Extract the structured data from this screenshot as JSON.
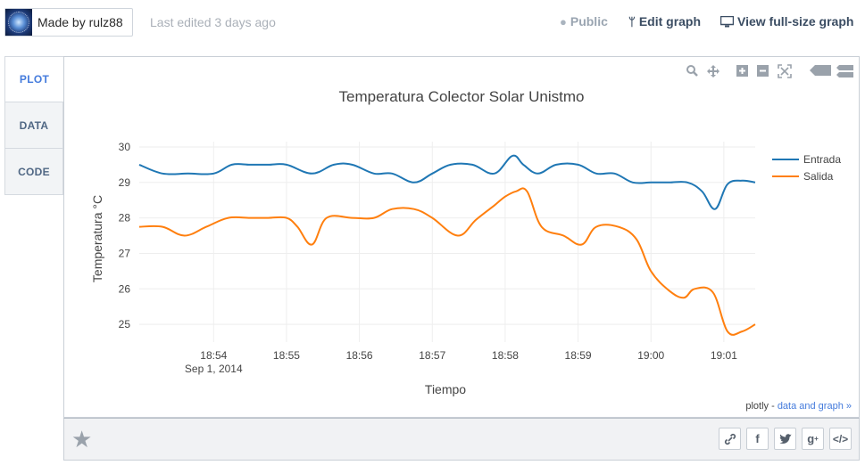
{
  "header": {
    "author_label": "Made by rulz88",
    "last_edited": "Last edited 3 days ago",
    "public_label": "Public",
    "edit_label": "Edit graph",
    "view_full_label": "View full-size graph"
  },
  "tabs": [
    {
      "label": "PLOT",
      "active": true
    },
    {
      "label": "DATA",
      "active": false
    },
    {
      "label": "CODE",
      "active": false
    }
  ],
  "modebar": [
    "zoom-icon",
    "pan-icon",
    "zoom-in-icon",
    "zoom-out-icon",
    "autoscale-icon",
    "hover-closest-icon",
    "hover-compare-icon"
  ],
  "credit": {
    "prefix": "plotly - ",
    "link": "data and graph »"
  },
  "share": [
    "link-icon",
    "facebook-icon",
    "twitter-icon",
    "google-plus-icon",
    "embed-icon"
  ],
  "colors": {
    "entrada": "#1f77b4",
    "salida": "#ff7f0e",
    "grid": "#eeeeee",
    "link": "#447bdc"
  },
  "chart_data": {
    "type": "line",
    "title": "Temperatura Colector Solar Unistmo",
    "xlabel": "Tiempo",
    "ylabel": "Temperatura °C",
    "x_tick_labels": [
      "18:54",
      "18:55",
      "18:56",
      "18:57",
      "18:58",
      "18:59",
      "19:00",
      "19:01"
    ],
    "x_tick_sublabel": "Sep 1, 2014",
    "y_ticks": [
      25,
      26,
      27,
      28,
      29,
      30
    ],
    "xlim": [
      -1.02,
      7.43
    ],
    "ylim": [
      24.5,
      30.15
    ],
    "grid": true,
    "legend_position": "top-right",
    "series": [
      {
        "name": "Entrada",
        "x": [
          -1.02,
          -0.7,
          -0.35,
          0.0,
          0.25,
          0.5,
          0.75,
          1.0,
          1.35,
          1.65,
          1.9,
          2.2,
          2.45,
          2.75,
          3.0,
          3.25,
          3.55,
          3.85,
          4.1,
          4.25,
          4.45,
          4.7,
          5.0,
          5.25,
          5.5,
          5.75,
          6.0,
          6.25,
          6.5,
          6.7,
          6.88,
          7.05,
          7.25,
          7.43
        ],
        "values": [
          29.5,
          29.25,
          29.25,
          29.25,
          29.5,
          29.5,
          29.5,
          29.5,
          29.25,
          29.5,
          29.5,
          29.25,
          29.25,
          29.0,
          29.25,
          29.5,
          29.5,
          29.25,
          29.75,
          29.5,
          29.25,
          29.5,
          29.5,
          29.25,
          29.25,
          29.0,
          29.0,
          29.0,
          29.0,
          28.75,
          28.25,
          28.95,
          29.05,
          29.0
        ]
      },
      {
        "name": "Salida",
        "x": [
          -1.02,
          -0.7,
          -0.4,
          -0.1,
          0.2,
          0.5,
          0.75,
          1.0,
          1.15,
          1.35,
          1.55,
          1.9,
          2.2,
          2.45,
          2.75,
          3.0,
          3.35,
          3.6,
          3.85,
          4.0,
          4.15,
          4.3,
          4.5,
          4.8,
          5.05,
          5.25,
          5.55,
          5.8,
          6.0,
          6.25,
          6.45,
          6.6,
          6.85,
          7.05,
          7.25,
          7.43
        ],
        "values": [
          27.75,
          27.75,
          27.5,
          27.75,
          28.0,
          28.0,
          28.0,
          28.0,
          27.75,
          27.25,
          28.0,
          28.0,
          28.0,
          28.25,
          28.25,
          28.0,
          27.5,
          27.95,
          28.35,
          28.6,
          28.75,
          28.75,
          27.75,
          27.5,
          27.25,
          27.75,
          27.75,
          27.4,
          26.5,
          25.95,
          25.75,
          26.0,
          25.9,
          24.8,
          24.8,
          25.0
        ]
      }
    ]
  }
}
